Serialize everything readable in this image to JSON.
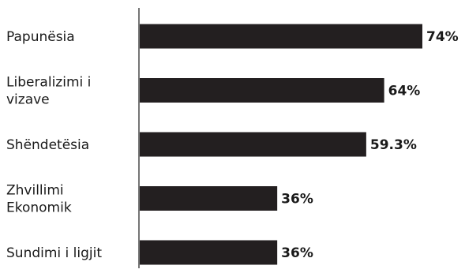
{
  "chart_data": {
    "type": "bar",
    "orientation": "horizontal",
    "categories": [
      [
        "Papunësia"
      ],
      [
        "Liberalizimi i",
        "vizave"
      ],
      [
        "Shëndetësia"
      ],
      [
        "Zhvillimi",
        "Ekonomik"
      ],
      [
        "Sundimi i ligjit"
      ]
    ],
    "values": [
      74,
      64,
      59.3,
      36,
      36
    ],
    "value_labels": [
      "74%",
      "64%",
      "59.3%",
      "36%",
      "36%"
    ],
    "bar_color": "#231f20",
    "xlim": [
      0,
      74
    ],
    "grid": false,
    "legend": "none"
  }
}
